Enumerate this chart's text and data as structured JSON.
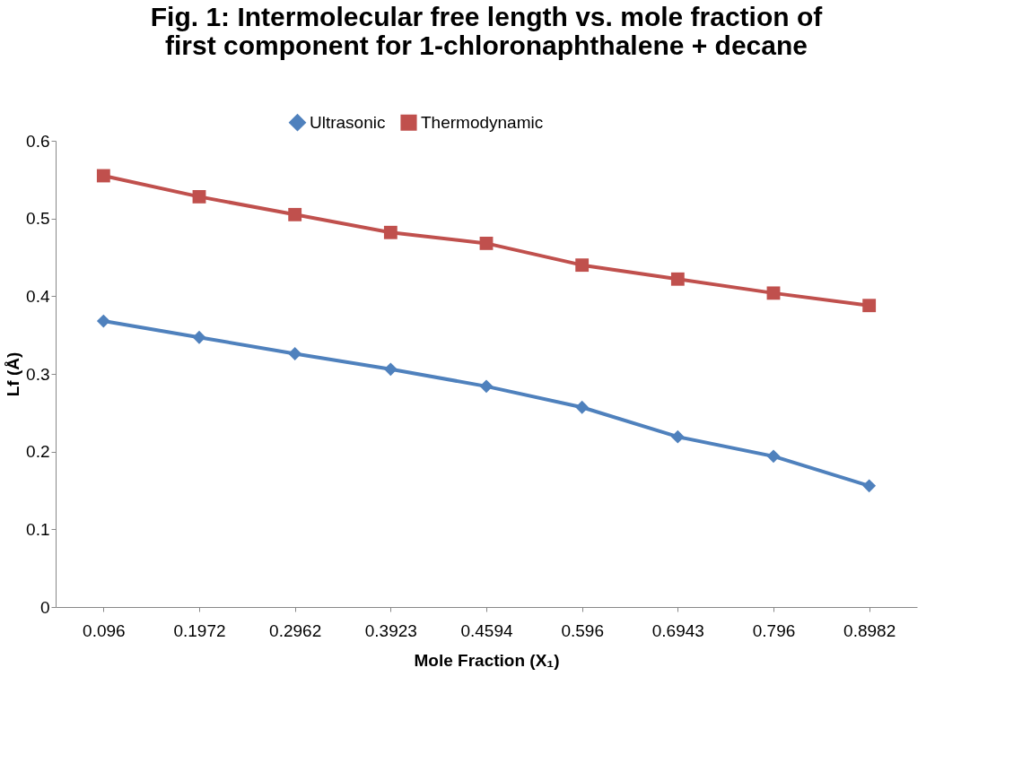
{
  "chart_data": {
    "type": "line",
    "title": "Fig. 1: Intermolecular free length vs. mole fraction of first component for 1-chloronaphthalene + decane",
    "categories": [
      "0.096",
      "0.1972",
      "0.2962",
      "0.3923",
      "0.4594",
      "0.596",
      "0.6943",
      "0.796",
      "0.8982"
    ],
    "series": [
      {
        "name": "Ultrasonic",
        "color": "#4f81bd",
        "marker": "diamond",
        "values": [
          0.368,
          0.347,
          0.326,
          0.306,
          0.284,
          0.257,
          0.219,
          0.194,
          0.156
        ]
      },
      {
        "name": "Thermodynamic",
        "color": "#c0504d",
        "marker": "square",
        "values": [
          0.555,
          0.528,
          0.505,
          0.482,
          0.468,
          0.44,
          0.422,
          0.404,
          0.388
        ]
      }
    ],
    "xlabel": "Mole Fraction (X₁)",
    "ylabel": "Lf (Å)",
    "ylim": [
      0,
      0.6
    ],
    "yticks": [
      0,
      0.1,
      0.2,
      0.3,
      0.4,
      0.5,
      0.6
    ],
    "grid": false,
    "legend": "top",
    "line_style": "solid"
  }
}
